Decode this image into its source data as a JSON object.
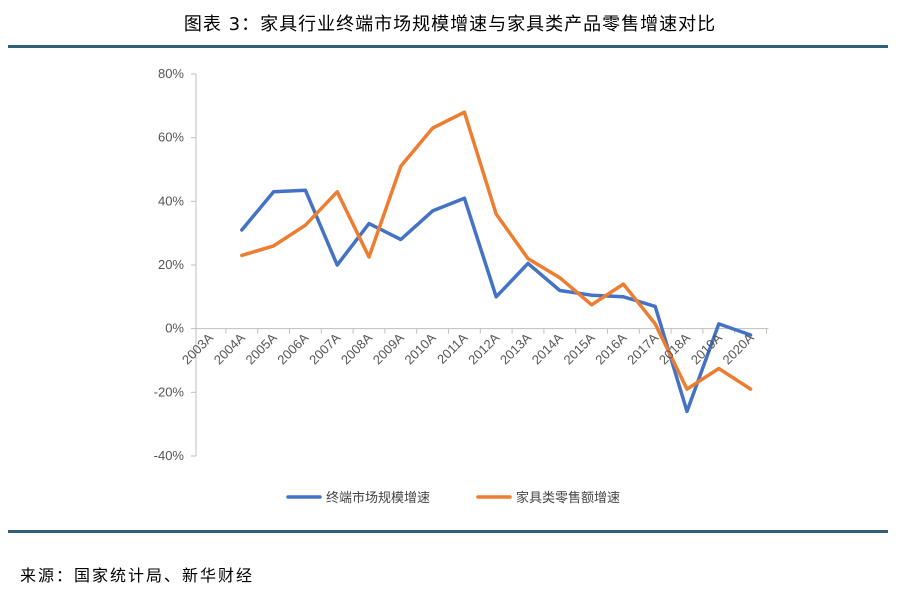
{
  "header": {
    "title": "图表 3：家具行业终端市场规模增速与家具类产品零售增速对比"
  },
  "footer": {
    "source": "来源：国家统计局、新华财经"
  },
  "colors": {
    "rule": "#2f5f7a",
    "series1": "#4472c4",
    "series2": "#ed7d31"
  },
  "chart_data": {
    "type": "line",
    "categories": [
      "2003A",
      "2004A",
      "2005A",
      "2006A",
      "2007A",
      "2008A",
      "2009A",
      "2010A",
      "2011A",
      "2012A",
      "2013A",
      "2014A",
      "2015A",
      "2016A",
      "2017A",
      "2018A",
      "2019A",
      "2020A"
    ],
    "y_ticks": [
      "80%",
      "60%",
      "40%",
      "20%",
      "0%",
      "-20%",
      "-40%"
    ],
    "ylim": [
      -40,
      80
    ],
    "grid": false,
    "legend_position": "bottom",
    "series": [
      {
        "name": "终端市场规模增速",
        "color": "#4472c4",
        "values": [
          null,
          31,
          43,
          43.5,
          20,
          33,
          28,
          37,
          41,
          10,
          20.5,
          12,
          10.5,
          10,
          7,
          -26,
          1.5,
          -2
        ]
      },
      {
        "name": "家具类零售额增速",
        "color": "#ed7d31",
        "values": [
          null,
          23,
          26,
          32.5,
          43,
          22.5,
          51,
          63,
          68,
          36,
          22,
          16,
          7.5,
          14,
          1.5,
          -19,
          -12.5,
          -19
        ]
      }
    ]
  }
}
